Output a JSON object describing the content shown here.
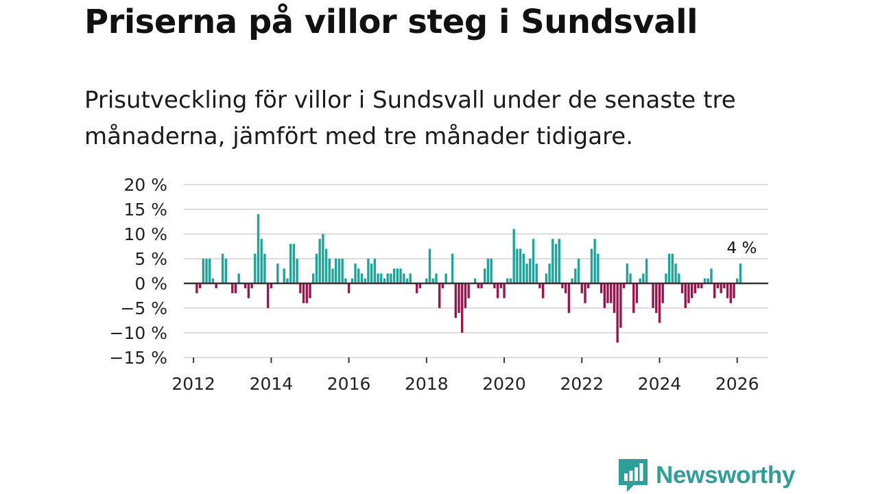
{
  "header": {
    "title": "Priserna på villor steg i Sundsvall",
    "subtitle": "Prisutveckling för villor i Sundsvall under de senaste tre månaderna, jämfört med tre månader tidigare."
  },
  "brand": {
    "name": "Newsworthy",
    "icon": "newsworthy-logo-icon"
  },
  "colors": {
    "positive": "#1ba59b",
    "negative": "#a0124a",
    "brand": "#2f9e98",
    "grid": "#dddddd",
    "zero_line": "#333333"
  },
  "chart_data": {
    "type": "bar",
    "title": "Priserna på villor steg i Sundsvall",
    "subtitle": "Prisutveckling för villor i Sundsvall under de senaste tre månaderna, jämfört med tre månader tidigare.",
    "xlabel": "",
    "ylabel": "",
    "unit": "%",
    "ylim": [
      -15,
      20
    ],
    "yticks": [
      20,
      15,
      10,
      5,
      0,
      -5,
      -10,
      -15
    ],
    "ytick_labels": [
      "20 %",
      "15 %",
      "10 %",
      "5 %",
      "0 %",
      "−5 %",
      "−10 %",
      "−15 %"
    ],
    "xlim": [
      2011.75,
      2026.8
    ],
    "xticks": [
      2012,
      2014,
      2016,
      2018,
      2020,
      2022,
      2024,
      2026
    ],
    "xtick_labels": [
      "2012",
      "2014",
      "2016",
      "2018",
      "2020",
      "2022",
      "2024",
      "2026"
    ],
    "grid": true,
    "start_year": 2012,
    "start_month": 1,
    "values": [
      0,
      -2,
      -1,
      5,
      5,
      5,
      1,
      -1,
      0,
      6,
      5,
      0,
      -2,
      -2,
      2,
      0,
      -1,
      -3,
      -1,
      6,
      14,
      9,
      6,
      -5,
      -1,
      0,
      4,
      0,
      3,
      1,
      8,
      8,
      5,
      -2,
      -4,
      -4,
      -3,
      2,
      6,
      9,
      10,
      7,
      5,
      3,
      5,
      5,
      5,
      1,
      -2,
      1,
      4,
      3,
      2,
      1,
      5,
      4,
      5,
      2,
      2,
      1,
      2,
      2,
      3,
      3,
      3,
      2,
      1,
      2,
      0,
      -2,
      -1,
      0,
      1,
      7,
      1,
      2,
      -5,
      -1,
      2,
      0,
      6,
      -7,
      -6,
      -10,
      -5,
      -3,
      0,
      1,
      -1,
      -1,
      3,
      5,
      5,
      -1,
      -3,
      -1,
      -3,
      1,
      1,
      11,
      7,
      7,
      6,
      4,
      5,
      9,
      4,
      -1,
      -3,
      2,
      4,
      9,
      8,
      9,
      -1,
      -2,
      -6,
      1,
      3,
      5,
      -2,
      -4,
      -1,
      7,
      9,
      6,
      -2,
      -5,
      -4,
      -4,
      -6,
      -12,
      -9,
      -1,
      4,
      2,
      -6,
      -4,
      1,
      2,
      5,
      0,
      -5,
      -6,
      -8,
      -4,
      2,
      6,
      6,
      4,
      2,
      -2,
      -5,
      -4,
      -3,
      -2,
      -1,
      -1,
      1,
      1,
      3,
      -3,
      -1,
      -2,
      -1,
      -3,
      -4,
      -3,
      1,
      4
    ],
    "annotations": [
      {
        "label": "4 %",
        "target": "last"
      }
    ]
  }
}
